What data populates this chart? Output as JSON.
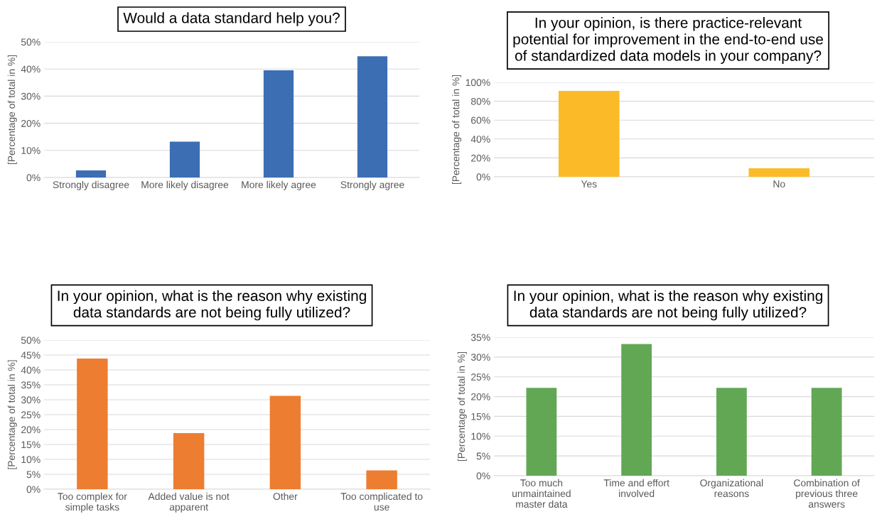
{
  "chart_data": [
    {
      "type": "bar",
      "title": "Would a data standard help you?",
      "ylabel": "[Percentage of total in %]",
      "categories": [
        "Strongly disagree",
        "More likely disagree",
        "More likely agree",
        "Strongly agree"
      ],
      "values": [
        2.6,
        13.2,
        39.5,
        44.7
      ],
      "color": "#3c6eb4",
      "ylim": [
        0,
        50
      ],
      "yticks": [
        {
          "value": 0,
          "label": "0%"
        },
        {
          "value": 10,
          "label": "10%"
        },
        {
          "value": 20,
          "label": "20%"
        },
        {
          "value": 30,
          "label": "30%"
        },
        {
          "value": 40,
          "label": "40%"
        },
        {
          "value": 50,
          "label": "50%"
        }
      ],
      "grid": "y",
      "legend": false
    },
    {
      "type": "bar",
      "title": "In your opinion, is there practice-relevant\npotential for improvement in the end-to-end use\nof standardized data models in your company?",
      "ylabel": "[Percentage of total in %]",
      "categories": [
        "Yes",
        "No"
      ],
      "values": [
        91,
        9
      ],
      "color": "#fbbb28",
      "ylim": [
        0,
        100
      ],
      "yticks": [
        {
          "value": 0,
          "label": "0%"
        },
        {
          "value": 20,
          "label": "20%"
        },
        {
          "value": 40,
          "label": "40%"
        },
        {
          "value": 60,
          "label": "60%"
        },
        {
          "value": 80,
          "label": "80%"
        },
        {
          "value": 100,
          "label": "100%"
        }
      ],
      "grid": "y",
      "legend": false
    },
    {
      "type": "bar",
      "title": "In your opinion, what is the reason why existing\ndata standards are not being fully utilized?",
      "ylabel": "[Percentage of total in %]",
      "categories": [
        "Too complex for\nsimple tasks",
        "Added value is not\napparent",
        "Other",
        "Too complicated to\nuse"
      ],
      "values": [
        43.8,
        18.8,
        31.3,
        6.3
      ],
      "color": "#ed7d31",
      "ylim": [
        0,
        50
      ],
      "yticks": [
        {
          "value": 0,
          "label": "0%"
        },
        {
          "value": 5,
          "label": "5%"
        },
        {
          "value": 10,
          "label": "10%"
        },
        {
          "value": 15,
          "label": "15%"
        },
        {
          "value": 20,
          "label": "20%"
        },
        {
          "value": 25,
          "label": "25%"
        },
        {
          "value": 30,
          "label": "30%"
        },
        {
          "value": 35,
          "label": "35%"
        },
        {
          "value": 40,
          "label": "40%"
        },
        {
          "value": 45,
          "label": "45%"
        },
        {
          "value": 50,
          "label": "50%"
        }
      ],
      "grid": "y",
      "legend": false
    },
    {
      "type": "bar",
      "title": "In your opinion, what is the reason why existing\ndata standards are not being fully utilized?",
      "ylabel": "[Percentage of total in %]",
      "categories": [
        "Too much\nunmaintained\nmaster data",
        "Time and effort\ninvolved",
        "Organizational\nreasons",
        "Combination of\nprevious three\nanswers"
      ],
      "values": [
        22.2,
        33.3,
        22.2,
        22.2
      ],
      "color": "#62a854",
      "ylim": [
        0,
        35
      ],
      "yticks": [
        {
          "value": 0,
          "label": "0%"
        },
        {
          "value": 5,
          "label": "5%"
        },
        {
          "value": 10,
          "label": "10%"
        },
        {
          "value": 15,
          "label": "15%"
        },
        {
          "value": 20,
          "label": "20%"
        },
        {
          "value": 25,
          "label": "25%"
        },
        {
          "value": 30,
          "label": "30%"
        },
        {
          "value": 35,
          "label": "35%"
        }
      ],
      "grid": "y",
      "legend": false
    }
  ]
}
